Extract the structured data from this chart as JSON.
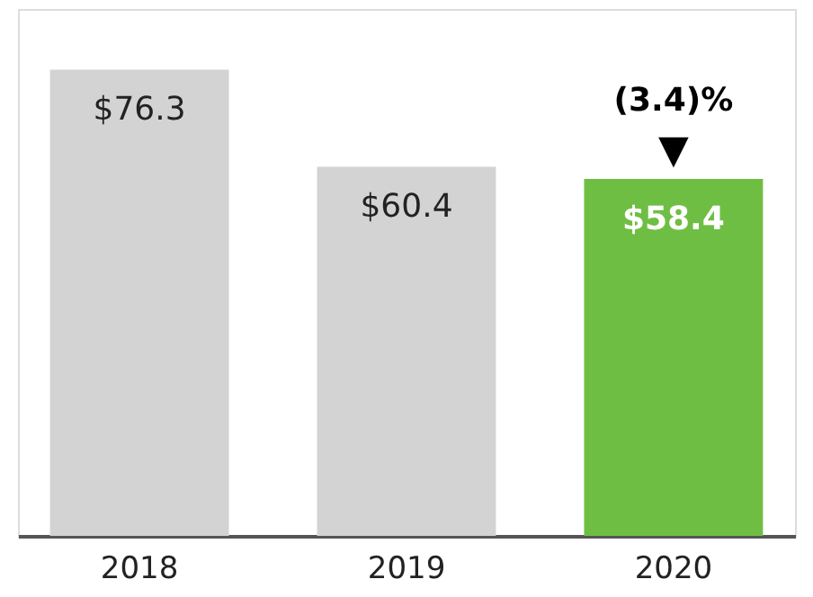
{
  "chart_data": {
    "type": "bar",
    "categories": [
      "2018",
      "2019",
      "2020"
    ],
    "values": [
      76.3,
      60.4,
      58.4
    ],
    "colors": [
      "#d3d3d3",
      "#d3d3d3",
      "#6fbe44"
    ],
    "value_labels": [
      "$76.3",
      "$60.4",
      "$58.4"
    ],
    "annotations": [
      {
        "text": "(3.4)%",
        "x": "2020",
        "y": 58.4
      },
      {
        "text": "▼",
        "x": "2020",
        "y": 58.4
      }
    ]
  }
}
